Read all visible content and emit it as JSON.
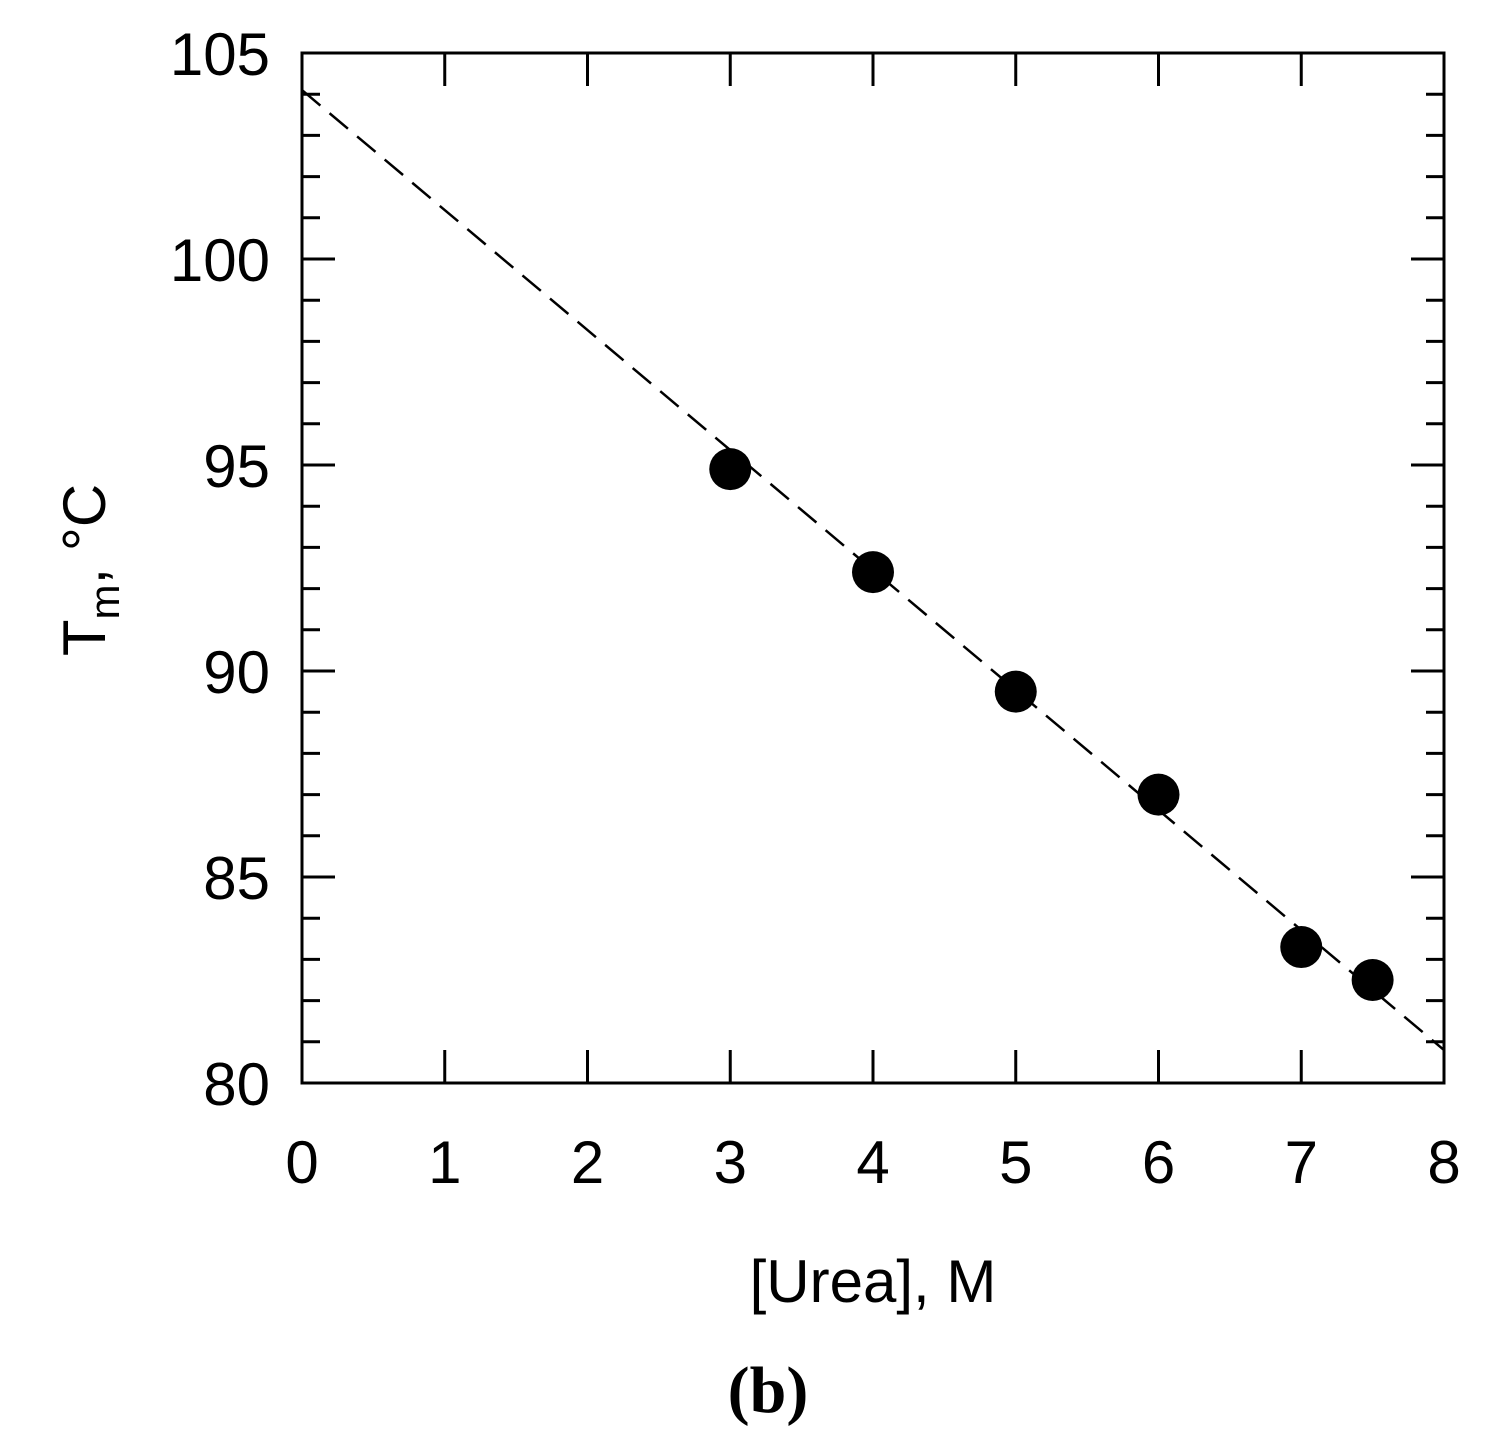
{
  "panel_label": "(b)",
  "chart_data": {
    "type": "scatter",
    "xlabel": "[Urea], M",
    "ylabel_main": "T",
    "ylabel_sub": "m",
    "ylabel_unit": ", °C",
    "xlim": [
      0,
      8
    ],
    "ylim": [
      80,
      105
    ],
    "x_ticks": [
      "0",
      "1",
      "2",
      "3",
      "4",
      "5",
      "6",
      "7",
      "8"
    ],
    "y_ticks": [
      "80",
      "85",
      "90",
      "95",
      "100",
      "105"
    ],
    "grid": false,
    "legend": "none",
    "series": [
      {
        "x": [
          3,
          4,
          5,
          6,
          7,
          7.5
        ],
        "y": [
          94.9,
          92.4,
          89.5,
          87.0,
          83.3,
          82.5
        ],
        "marker": "filled-circle",
        "color": "#000000"
      }
    ],
    "fit_line": {
      "style": "dashed",
      "color": "#000000",
      "x": [
        0,
        8
      ],
      "y": [
        104.1,
        80.8
      ]
    }
  }
}
